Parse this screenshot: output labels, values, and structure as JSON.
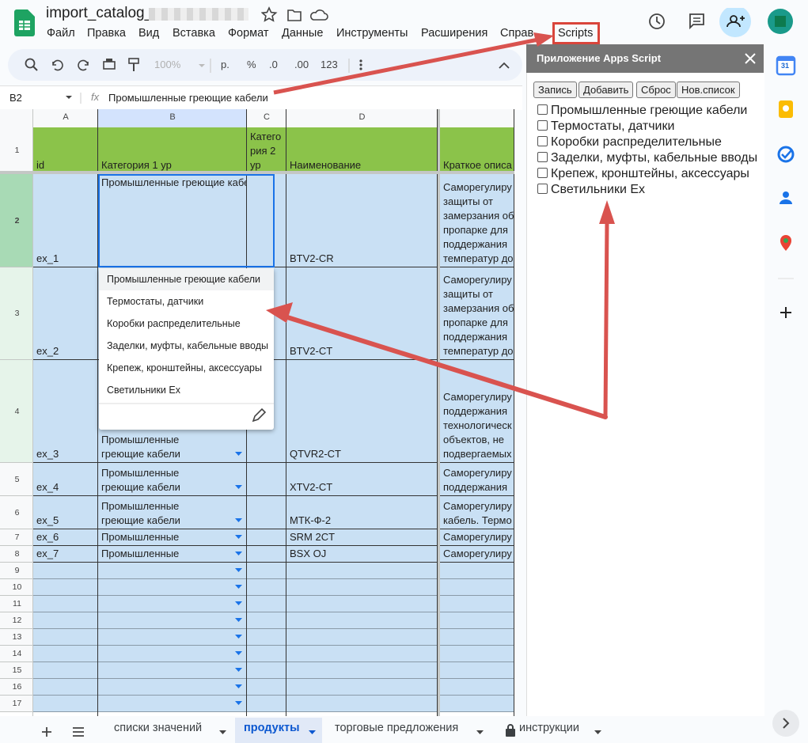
{
  "header": {
    "title": "import_catalog_",
    "menu": [
      "Файл",
      "Правка",
      "Вид",
      "Вставка",
      "Формат",
      "Данные",
      "Инструменты",
      "Расширения",
      "Справ",
      "Scripts"
    ]
  },
  "toolbar": {
    "zoom": "100%",
    "currency": "р.",
    "percent": "%",
    "decrease_decimals": ".0",
    "increase_decimals": ".00",
    "number_format": "123"
  },
  "formula_bar": {
    "cell": "B2",
    "function_icon": "fx",
    "content": "Промышленные греющие кабели"
  },
  "grid": {
    "columns": [
      "A",
      "B",
      "C",
      "D"
    ],
    "rows": [
      {
        "num": 1,
        "cells": [
          "id",
          "Категория 1 ур",
          [
            "Катего",
            "рия 2",
            "ур"
          ],
          "Наименование",
          "Краткое описа"
        ]
      },
      {
        "num": 2,
        "cells": [
          "ex_1",
          "Промышленные греющие кабели",
          null,
          "BTV2-CR",
          [
            "Саморегулиру",
            "защиты от",
            "замерзания об",
            "пропарке для",
            "поддержания",
            "температур до"
          ]
        ]
      },
      {
        "num": 3,
        "cells": [
          "ex_2",
          null,
          null,
          "BTV2-CT",
          [
            "Саморегулиру",
            "защиты от",
            "замерзания об",
            "пропарке для",
            "поддержания",
            "температур до"
          ]
        ]
      },
      {
        "num": 4,
        "cells": [
          "ex_3",
          [
            "Промышленные",
            "греющие кабели"
          ],
          null,
          "QTVR2-CT",
          [
            "Саморегулиру",
            "поддержания",
            "технологическ",
            "объектов, не",
            "подвергаемых"
          ]
        ]
      },
      {
        "num": 5,
        "cells": [
          "ex_4",
          [
            "Промышленные",
            "греющие кабели"
          ],
          null,
          "XTV2-CT",
          [
            "Саморегулиру",
            "поддержания"
          ]
        ]
      },
      {
        "num": 6,
        "cells": [
          "ex_5",
          [
            "Промышленные",
            "греющие кабели"
          ],
          null,
          "МТК-Ф-2",
          [
            "Саморегулиру",
            "кабель. Термо"
          ]
        ]
      },
      {
        "num": 7,
        "cells": [
          "ex_6",
          "Промышленные",
          null,
          "SRM 2CT",
          "Саморегулиру"
        ]
      },
      {
        "num": 8,
        "cells": [
          "ex_7",
          "Промышленные",
          null,
          "BSX OJ",
          "Саморегулиру"
        ]
      },
      {
        "num": 9,
        "cells": [
          null,
          null,
          null,
          null,
          null
        ]
      },
      {
        "num": 10,
        "cells": [
          null,
          null,
          null,
          null,
          null
        ]
      },
      {
        "num": 11,
        "cells": [
          null,
          null,
          null,
          null,
          null
        ]
      },
      {
        "num": 12,
        "cells": [
          null,
          null,
          null,
          null,
          null
        ]
      },
      {
        "num": 13,
        "cells": [
          null,
          null,
          null,
          null,
          null
        ]
      },
      {
        "num": 14,
        "cells": [
          null,
          null,
          null,
          null,
          null
        ]
      },
      {
        "num": 15,
        "cells": [
          null,
          null,
          null,
          null,
          null
        ]
      },
      {
        "num": 16,
        "cells": [
          null,
          null,
          null,
          null,
          null
        ]
      },
      {
        "num": 17,
        "cells": [
          null,
          null,
          null,
          null,
          null
        ]
      }
    ]
  },
  "dropdown": {
    "options": [
      "Промышленные греющие кабели",
      "Термостаты, датчики",
      "Коробки распределительные",
      "Заделки, муфты, кабельные вводы",
      "Крепеж, кронштейны, аксессуары",
      "Светильники Ex"
    ]
  },
  "sidebar": {
    "title": "Приложение Apps Script",
    "buttons": [
      "Запись",
      "Добавить",
      "Сброс",
      "Нов.список"
    ],
    "checkboxes": [
      "Промышленные греющие кабели",
      "Термостаты, датчики",
      "Коробки распределительные",
      "Заделки, муфты, кабельные вводы",
      "Крепеж, кронштейны, аксессуары",
      "Светильники Ex"
    ]
  },
  "right_rail": {
    "calendar_day": "31"
  },
  "sheet_tabs": [
    {
      "name": "списки значений"
    },
    {
      "name": "продукты",
      "active": true
    },
    {
      "name": "торговые предложения"
    },
    {
      "name": "инструкции",
      "locked": true
    }
  ]
}
